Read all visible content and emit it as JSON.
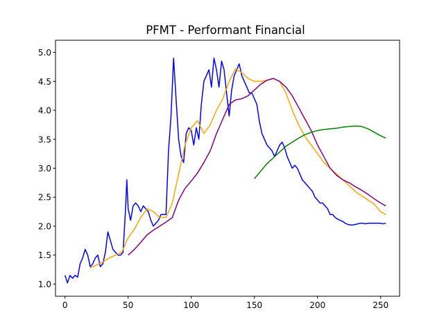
{
  "chart_data": {
    "type": "line",
    "title": "PFMT - Performant Financial",
    "xlabel": "",
    "ylabel": "",
    "xlim": [
      -7.5,
      265
    ],
    "ylim": [
      0.79,
      5.21
    ],
    "x_ticks": [
      0,
      50,
      100,
      150,
      200,
      250
    ],
    "y_ticks": [
      1.0,
      1.5,
      2.0,
      2.5,
      3.0,
      3.5,
      4.0,
      4.5,
      5.0
    ],
    "grid": false,
    "legend": "none",
    "series": [
      {
        "color": "#0000ff",
        "x": [
          0,
          2,
          4,
          6,
          8,
          10,
          12,
          14,
          16,
          18,
          20,
          22,
          24,
          26,
          28,
          30,
          32,
          34,
          36,
          38,
          40,
          42,
          44,
          46,
          48,
          49,
          50,
          52,
          54,
          56,
          58,
          60,
          62,
          64,
          66,
          68,
          70,
          72,
          74,
          76,
          78,
          80,
          82,
          84,
          86,
          88,
          90,
          92,
          94,
          96,
          98,
          100,
          102,
          104,
          106,
          108,
          110,
          112,
          114,
          116,
          118,
          120,
          122,
          124,
          126,
          128,
          130,
          132,
          134,
          136,
          138,
          140,
          142,
          144,
          146,
          148,
          150,
          152,
          154,
          156,
          158,
          160,
          162,
          164,
          166,
          168,
          170,
          172,
          174,
          176,
          178,
          180,
          182,
          184,
          186,
          188,
          190,
          192,
          194,
          196,
          198,
          200,
          202,
          204,
          206,
          208,
          210,
          212,
          214,
          216,
          218,
          220,
          222,
          224,
          226,
          228,
          230,
          232,
          234,
          236,
          238,
          240,
          242,
          244,
          246,
          248,
          250,
          252,
          254
        ],
        "y": [
          1.15,
          1.02,
          1.15,
          1.1,
          1.15,
          1.12,
          1.35,
          1.45,
          1.6,
          1.5,
          1.3,
          1.35,
          1.45,
          1.5,
          1.3,
          1.35,
          1.55,
          1.9,
          1.75,
          1.6,
          1.55,
          1.5,
          1.5,
          1.55,
          2.3,
          2.8,
          2.3,
          2.1,
          2.35,
          2.4,
          2.35,
          2.25,
          2.35,
          2.3,
          2.25,
          2.1,
          2.0,
          2.05,
          2.1,
          2.2,
          2.2,
          2.2,
          3.3,
          3.9,
          4.9,
          4.2,
          3.5,
          3.2,
          3.1,
          3.6,
          3.7,
          3.65,
          3.4,
          3.7,
          3.5,
          4.1,
          4.5,
          4.6,
          4.7,
          4.4,
          4.9,
          4.7,
          4.4,
          4.85,
          4.7,
          4.3,
          3.9,
          4.35,
          4.6,
          4.7,
          4.8,
          4.6,
          4.5,
          4.4,
          4.3,
          4.3,
          4.2,
          4.1,
          3.8,
          3.6,
          3.5,
          3.4,
          3.35,
          3.3,
          3.2,
          3.3,
          3.4,
          3.45,
          3.35,
          3.2,
          3.1,
          3.0,
          3.05,
          3.0,
          2.9,
          2.8,
          2.75,
          2.7,
          2.65,
          2.6,
          2.5,
          2.45,
          2.4,
          2.4,
          2.35,
          2.3,
          2.2,
          2.2,
          2.15,
          2.12,
          2.1,
          2.08,
          2.05,
          2.03,
          2.02,
          2.02,
          2.03,
          2.04,
          2.05,
          2.05,
          2.04,
          2.05,
          2.05,
          2.05,
          2.05,
          2.05,
          2.05,
          2.04,
          2.05
        ]
      },
      {
        "color": "#ffa500",
        "x": [
          20,
          25,
          30,
          35,
          40,
          45,
          50,
          55,
          60,
          65,
          70,
          75,
          80,
          85,
          90,
          95,
          100,
          105,
          110,
          115,
          120,
          125,
          130,
          135,
          140,
          145,
          150,
          155,
          160,
          165,
          170,
          175,
          180,
          185,
          190,
          195,
          200,
          205,
          210,
          215,
          220,
          225,
          230,
          235,
          240,
          245,
          250,
          254
        ],
        "y": [
          1.28,
          1.33,
          1.38,
          1.45,
          1.5,
          1.55,
          1.8,
          1.95,
          2.15,
          2.3,
          2.25,
          2.15,
          2.15,
          2.4,
          2.9,
          3.4,
          3.7,
          3.82,
          3.6,
          3.75,
          4.0,
          4.2,
          4.5,
          4.72,
          4.65,
          4.55,
          4.5,
          4.5,
          4.52,
          4.55,
          4.5,
          4.3,
          4.0,
          3.75,
          3.55,
          3.4,
          3.25,
          3.1,
          3.0,
          2.9,
          2.8,
          2.7,
          2.6,
          2.52,
          2.45,
          2.38,
          2.25,
          2.2
        ]
      },
      {
        "color": "#800080",
        "x": [
          50,
          55,
          60,
          65,
          70,
          75,
          80,
          85,
          90,
          95,
          100,
          105,
          110,
          115,
          120,
          125,
          130,
          135,
          140,
          145,
          150,
          155,
          160,
          165,
          170,
          175,
          180,
          185,
          190,
          195,
          200,
          205,
          210,
          215,
          220,
          225,
          230,
          235,
          240,
          245,
          250,
          254
        ],
        "y": [
          1.5,
          1.6,
          1.72,
          1.85,
          1.93,
          2.0,
          2.07,
          2.15,
          2.45,
          2.65,
          2.78,
          2.92,
          3.1,
          3.3,
          3.6,
          3.85,
          4.1,
          4.18,
          4.2,
          4.25,
          4.35,
          4.45,
          4.52,
          4.55,
          4.5,
          4.4,
          4.25,
          4.05,
          3.85,
          3.65,
          3.4,
          3.2,
          3.0,
          2.88,
          2.8,
          2.75,
          2.68,
          2.62,
          2.55,
          2.47,
          2.4,
          2.35
        ]
      },
      {
        "color": "#008000",
        "x": [
          150,
          155,
          160,
          165,
          170,
          175,
          180,
          185,
          190,
          195,
          200,
          205,
          210,
          215,
          220,
          225,
          230,
          235,
          240,
          245,
          250,
          254
        ],
        "y": [
          2.82,
          2.95,
          3.08,
          3.18,
          3.28,
          3.38,
          3.45,
          3.52,
          3.58,
          3.62,
          3.65,
          3.67,
          3.68,
          3.69,
          3.71,
          3.72,
          3.73,
          3.72,
          3.68,
          3.62,
          3.56,
          3.52
        ]
      }
    ]
  }
}
